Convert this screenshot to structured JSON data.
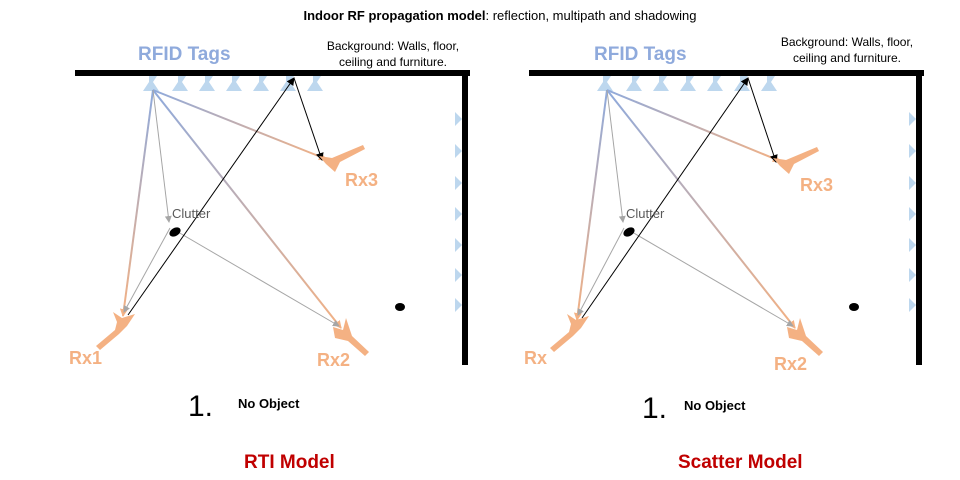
{
  "title": {
    "bold": "Indoor RF propagation model",
    "rest": ": reflection, multipath and shadowing"
  },
  "left_panel": {
    "tags_label": "RFID Tags",
    "background_note": [
      "Background: Walls, floor,",
      "ceiling and furniture."
    ],
    "clutter_label": "Clutter",
    "receivers": [
      "Rx1",
      "Rx2",
      "Rx3"
    ],
    "scenario_number": "1.",
    "scenario_text": "No Object",
    "model_title": "RTI Model"
  },
  "right_panel": {
    "tags_label": "RFID Tags",
    "background_note": [
      "Background: Walls, floor,",
      "ceiling and furniture."
    ],
    "clutter_label": "Clutter",
    "receivers": [
      "Rx",
      "Rx2",
      "Rx3"
    ],
    "scenario_number": "1.",
    "scenario_text": "No Object",
    "model_title": "Scatter Model"
  },
  "colors": {
    "tag": "#bdd7ee",
    "receiver": "#f4b183",
    "path_start": "#8faadc",
    "path_end": "#f4b183",
    "wall": "#000000",
    "model_title": "#c00000"
  }
}
